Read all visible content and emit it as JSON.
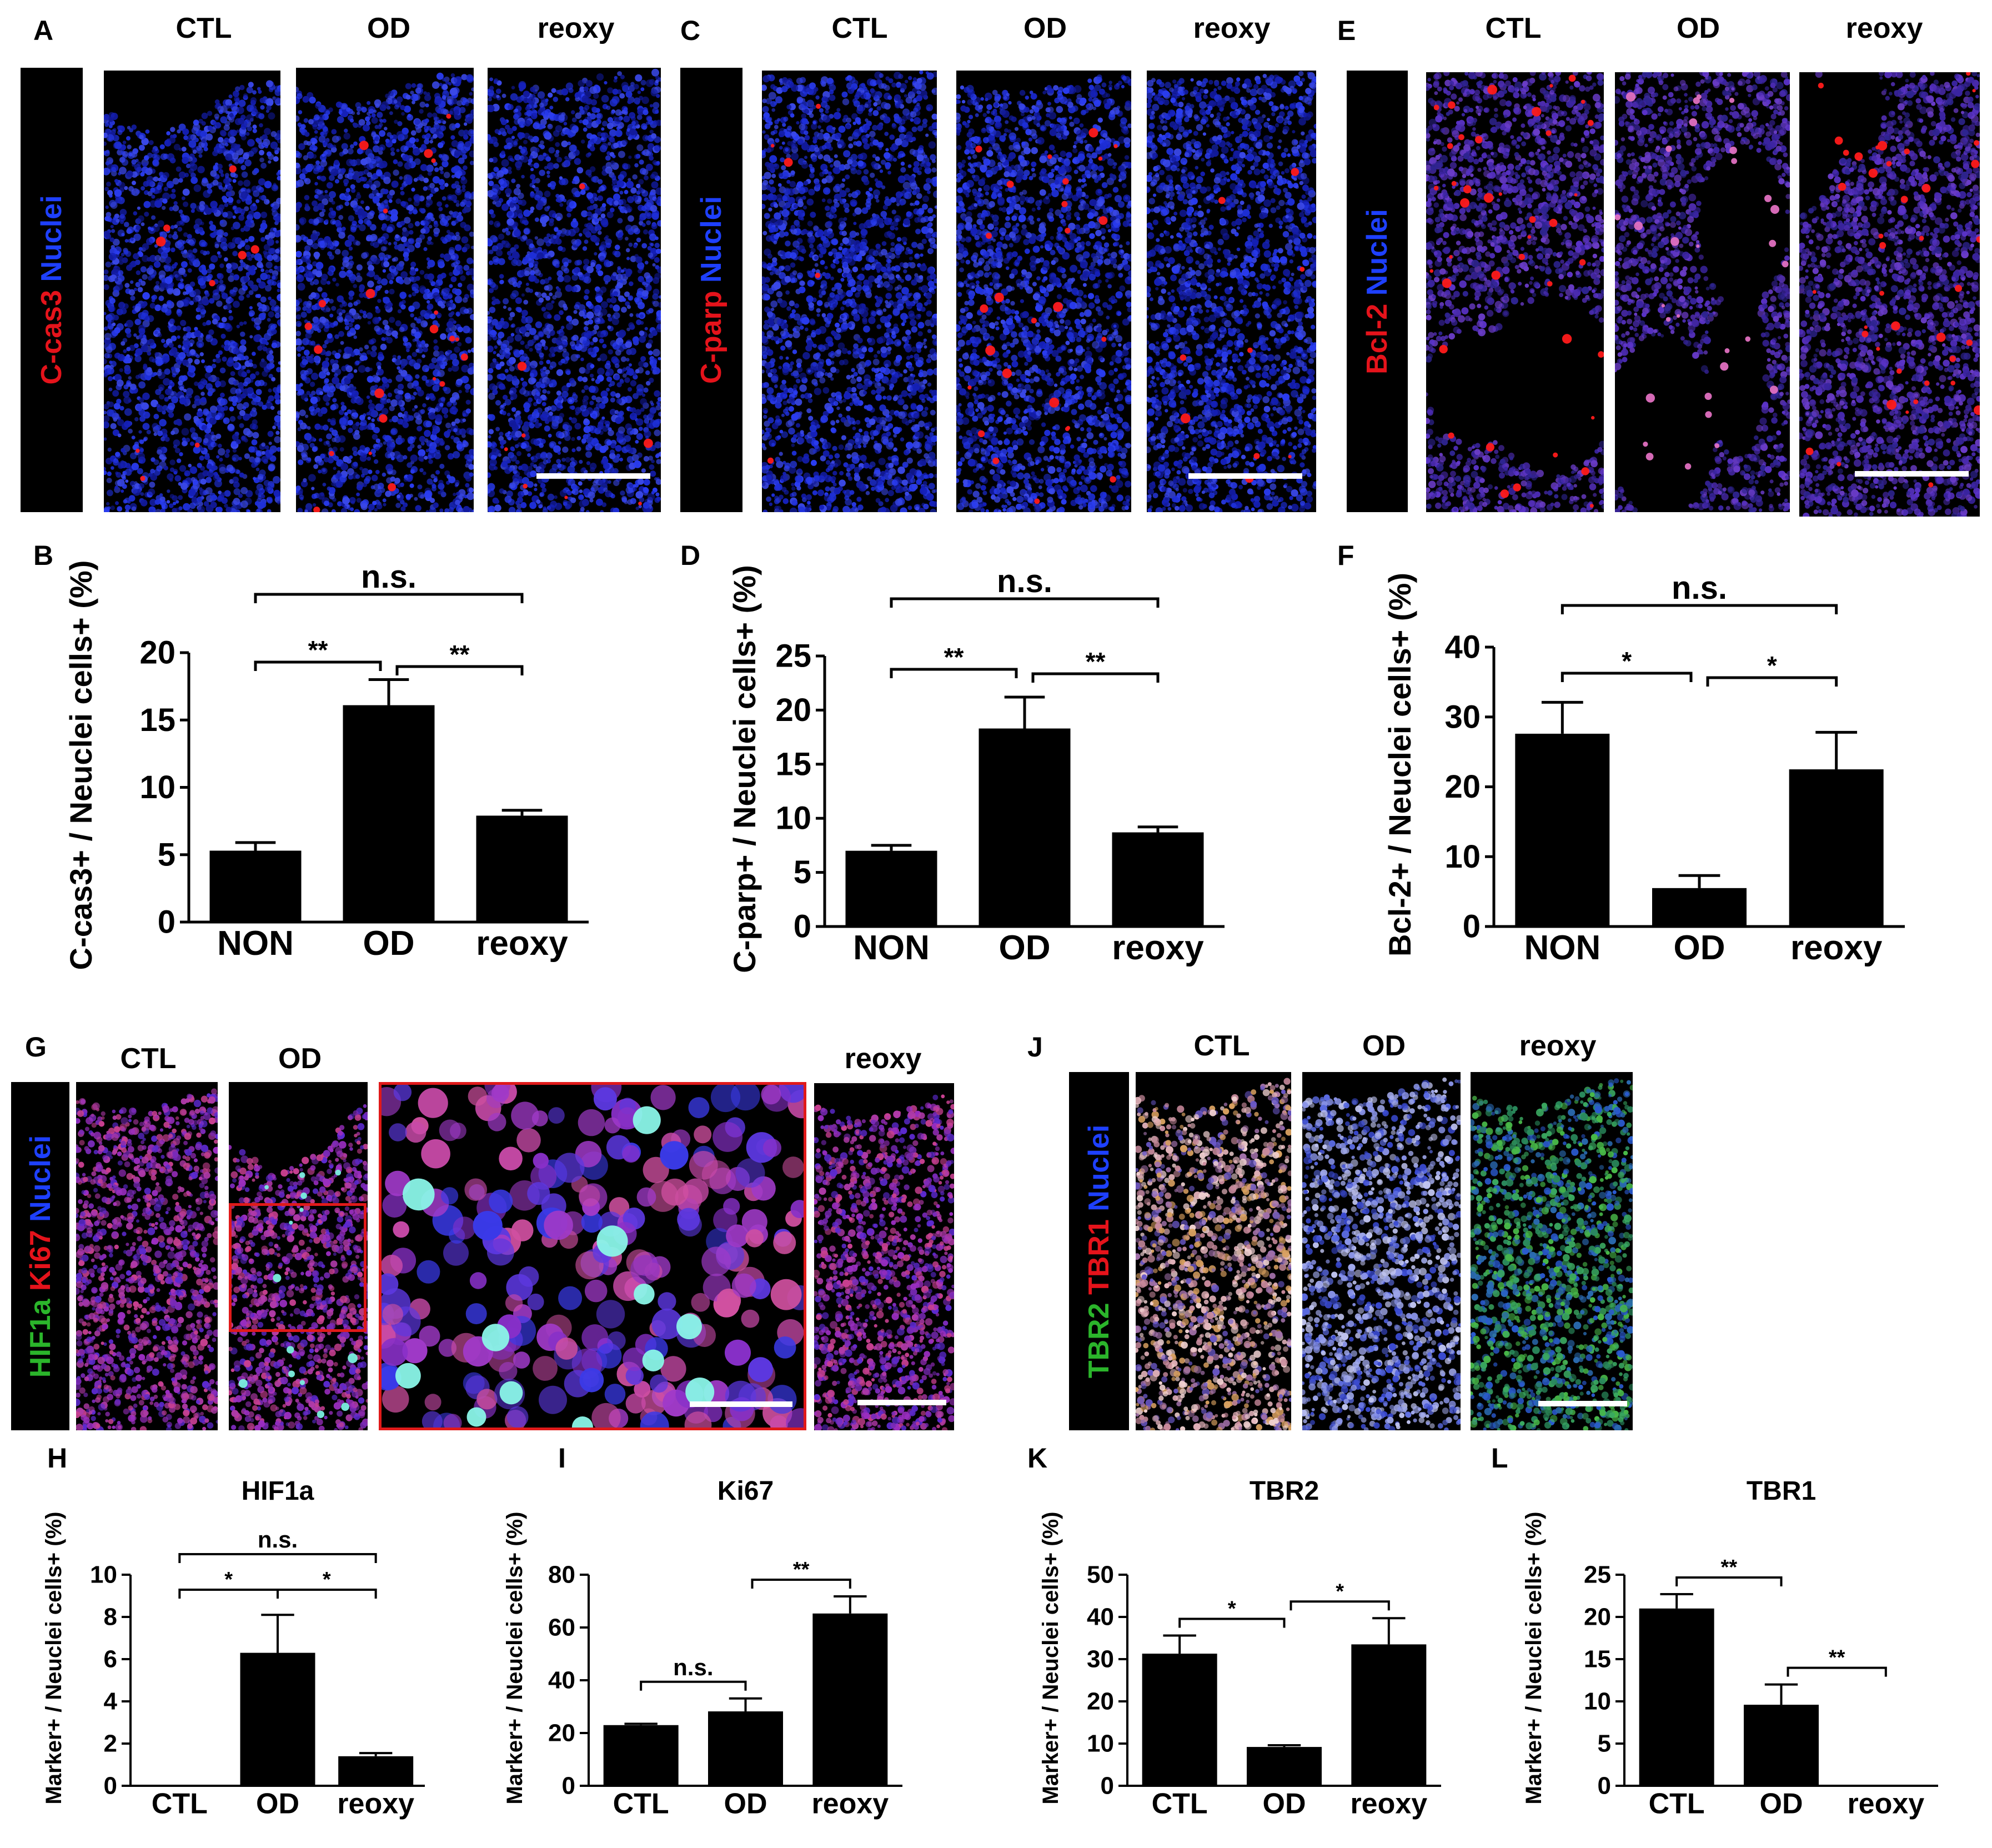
{
  "panel_letters": [
    "A",
    "B",
    "C",
    "D",
    "E",
    "F",
    "G",
    "H",
    "I",
    "J",
    "K",
    "L"
  ],
  "micrographs": {
    "A": {
      "columns": [
        "CTL",
        "OD",
        "reoxy"
      ],
      "stain_parts": [
        {
          "text": "C-cas3",
          "color": "#e5131b"
        },
        {
          "text": " Nuclei",
          "color": "#1e40ff"
        }
      ]
    },
    "C": {
      "columns": [
        "CTL",
        "OD",
        "reoxy"
      ],
      "stain_parts": [
        {
          "text": "C-parp",
          "color": "#e5131b"
        },
        {
          "text": " Nuclei",
          "color": "#1e40ff"
        }
      ]
    },
    "E": {
      "columns": [
        "CTL",
        "OD",
        "reoxy"
      ],
      "stain_parts": [
        {
          "text": "Bcl-2",
          "color": "#e5131b"
        },
        {
          "text": " Nuclei",
          "color": "#1e40ff"
        }
      ]
    },
    "G": {
      "columns": [
        "CTL",
        "OD",
        "reoxy"
      ],
      "stain_parts": [
        {
          "text": "HIF1a",
          "color": "#2bb52b"
        },
        {
          "text": " Ki67",
          "color": "#e5131b"
        },
        {
          "text": " Nuclei",
          "color": "#1e40ff"
        }
      ]
    },
    "J": {
      "columns": [
        "CTL",
        "OD",
        "reoxy"
      ],
      "stain_parts": [
        {
          "text": "TBR2",
          "color": "#2bb52b"
        },
        {
          "text": " TBR1",
          "color": "#e5131b"
        },
        {
          "text": " Nuclei",
          "color": "#1e40ff"
        }
      ]
    }
  },
  "chart_data": [
    {
      "id": "B",
      "type": "bar",
      "categories": [
        "NON",
        "OD",
        "reoxy"
      ],
      "values": [
        5.3,
        16.1,
        7.9
      ],
      "errors": [
        0.6,
        1.9,
        0.4
      ],
      "ylabel": "C-cas3+ / Neuclei cells+ (%)",
      "title": "",
      "ylim": [
        0,
        20
      ],
      "yticks": [
        0,
        5,
        10,
        15,
        20
      ],
      "comparisons": [
        {
          "from": 0,
          "to": 1,
          "label": "**"
        },
        {
          "from": 1,
          "to": 2,
          "label": "**"
        },
        {
          "from": 0,
          "to": 2,
          "label": "n.s."
        }
      ]
    },
    {
      "id": "D",
      "type": "bar",
      "categories": [
        "NON",
        "OD",
        "reoxy"
      ],
      "values": [
        7.0,
        18.3,
        8.7
      ],
      "errors": [
        0.5,
        2.9,
        0.5
      ],
      "ylabel": "C-parp+ / Neuclei cells+ (%)",
      "title": "",
      "ylim": [
        0,
        25
      ],
      "yticks": [
        0,
        5,
        10,
        15,
        20,
        25
      ],
      "comparisons": [
        {
          "from": 0,
          "to": 1,
          "label": "**"
        },
        {
          "from": 1,
          "to": 2,
          "label": "**"
        },
        {
          "from": 0,
          "to": 2,
          "label": "n.s."
        }
      ]
    },
    {
      "id": "F",
      "type": "bar",
      "categories": [
        "NON",
        "OD",
        "reoxy"
      ],
      "values": [
        27.6,
        5.5,
        22.5
      ],
      "errors": [
        4.5,
        1.8,
        5.3
      ],
      "ylabel": "Bcl-2+ / Neuclei cells+ (%)",
      "title": "",
      "ylim": [
        0,
        40
      ],
      "yticks": [
        0,
        10,
        20,
        30,
        40
      ],
      "comparisons": [
        {
          "from": 0,
          "to": 1,
          "label": "*"
        },
        {
          "from": 1,
          "to": 2,
          "label": "*"
        },
        {
          "from": 0,
          "to": 2,
          "label": "n.s."
        }
      ]
    },
    {
      "id": "H",
      "type": "bar",
      "categories": [
        "CTL",
        "OD",
        "reoxy"
      ],
      "values": [
        0.0,
        6.3,
        1.4
      ],
      "errors": [
        0,
        1.8,
        0.15
      ],
      "ylabel": "Marker+ / Neuclei cells+ (%)",
      "title": "HIF1a",
      "ylim": [
        0,
        10
      ],
      "yticks": [
        0,
        2,
        4,
        6,
        8,
        10
      ],
      "comparisons": [
        {
          "from": 0,
          "to": 1,
          "label": "*"
        },
        {
          "from": 1,
          "to": 2,
          "label": "*"
        },
        {
          "from": 0,
          "to": 2,
          "label": "n.s."
        }
      ]
    },
    {
      "id": "I",
      "type": "bar",
      "categories": [
        "CTL",
        "OD",
        "reoxy"
      ],
      "values": [
        23.0,
        28.2,
        65.3
      ],
      "errors": [
        0.5,
        4.9,
        6.5
      ],
      "ylabel": "Marker+ / Neuclei cells+ (%)",
      "title": "Ki67",
      "ylim": [
        0,
        80
      ],
      "yticks": [
        0,
        20,
        40,
        60,
        80
      ],
      "comparisons": [
        {
          "from": 0,
          "to": 1,
          "label": "n.s."
        },
        {
          "from": 1,
          "to": 2,
          "label": "**"
        }
      ]
    },
    {
      "id": "K",
      "type": "bar",
      "categories": [
        "CTL",
        "OD",
        "reoxy"
      ],
      "values": [
        31.3,
        9.2,
        33.5
      ],
      "errors": [
        4.3,
        0.4,
        6.2
      ],
      "ylabel": "Marker+ / Neuclei cells+ (%)",
      "title": "TBR2",
      "ylim": [
        0,
        50
      ],
      "yticks": [
        0,
        10,
        20,
        30,
        40,
        50
      ],
      "comparisons": [
        {
          "from": 0,
          "to": 1,
          "label": "*"
        },
        {
          "from": 1,
          "to": 2,
          "label": "*"
        }
      ]
    },
    {
      "id": "L",
      "type": "bar",
      "categories": [
        "CTL",
        "OD",
        "reoxy"
      ],
      "values": [
        21.0,
        9.6,
        0.0
      ],
      "errors": [
        1.7,
        2.4,
        0
      ],
      "ylabel": "Marker+ / Neuclei cells+ (%)",
      "title": "TBR1",
      "ylim": [
        0,
        25
      ],
      "yticks": [
        0,
        5,
        10,
        15,
        20,
        25
      ],
      "comparisons": [
        {
          "from": 0,
          "to": 1,
          "label": "**"
        },
        {
          "from": 1,
          "to": 2,
          "label": "**"
        }
      ]
    }
  ],
  "colors": {
    "bar": "#000000",
    "scale_bar": "#ffffff",
    "zoom_box": "#e01a1a",
    "background": "#ffffff"
  }
}
